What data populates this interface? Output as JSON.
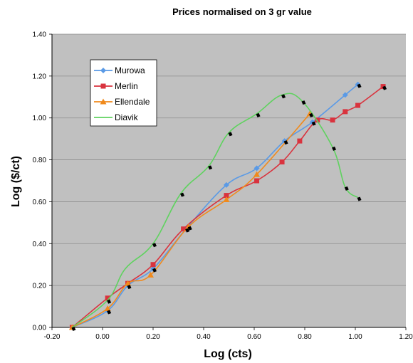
{
  "chart_data": {
    "type": "line",
    "title": "Prices normalised on 3 gr value",
    "xlabel": "Log (cts)",
    "ylabel": "Log ($/ct)",
    "xlim": [
      -0.2,
      1.2
    ],
    "ylim": [
      0.0,
      1.4
    ],
    "x_ticks": [
      "-0.20",
      "0.00",
      "0.20",
      "0.40",
      "0.60",
      "0.80",
      "1.00",
      "1.20"
    ],
    "y_ticks": [
      "0.00",
      "0.20",
      "0.40",
      "0.60",
      "0.80",
      "1.00",
      "1.20",
      "1.40"
    ],
    "grid": "horizontal",
    "legend_position": "top-left",
    "plot_background": "#c0c0c0",
    "series": [
      {
        "name": "Murowa",
        "color": "#5a9ae6",
        "marker": "diamond",
        "x": [
          -0.12,
          0.02,
          0.1,
          0.2,
          0.33,
          0.49,
          0.61,
          0.72,
          0.83,
          0.96,
          1.01
        ],
        "y": [
          0.0,
          0.08,
          0.2,
          0.28,
          0.47,
          0.68,
          0.76,
          0.89,
          0.98,
          1.11,
          1.16
        ]
      },
      {
        "name": "Merlin",
        "color": "#d9333e",
        "marker": "square",
        "x": [
          -0.12,
          0.02,
          0.1,
          0.2,
          0.32,
          0.49,
          0.61,
          0.71,
          0.78,
          0.85,
          0.91,
          0.96,
          1.01,
          1.11
        ],
        "y": [
          0.0,
          0.14,
          0.21,
          0.3,
          0.47,
          0.63,
          0.7,
          0.79,
          0.89,
          0.99,
          0.99,
          1.03,
          1.06,
          1.15
        ]
      },
      {
        "name": "Ellendale",
        "color": "#f08a1c",
        "marker": "triangle",
        "x": [
          -0.12,
          0.02,
          0.1,
          0.19,
          0.34,
          0.49,
          0.61,
          0.82
        ],
        "y": [
          0.0,
          0.09,
          0.21,
          0.25,
          0.48,
          0.61,
          0.73,
          1.02
        ]
      },
      {
        "name": "Diavik",
        "color": "#5fd25f",
        "marker": "none",
        "x": [
          -0.12,
          0.02,
          0.09,
          0.2,
          0.31,
          0.42,
          0.5,
          0.61,
          0.71,
          0.79,
          0.91,
          0.96,
          1.01
        ],
        "y": [
          0.0,
          0.13,
          0.28,
          0.4,
          0.64,
          0.77,
          0.93,
          1.02,
          1.11,
          1.08,
          0.86,
          0.67,
          0.62
        ]
      }
    ],
    "point_markers": {
      "color": "#000000",
      "x": [
        -0.12,
        0.02,
        0.02,
        0.1,
        0.2,
        0.2,
        0.31,
        0.33,
        0.34,
        0.42,
        0.5,
        0.61,
        0.71,
        0.72,
        0.79,
        0.82,
        0.83,
        0.91,
        0.96,
        1.01,
        1.01,
        1.11
      ],
      "y": [
        0.0,
        0.08,
        0.13,
        0.2,
        0.28,
        0.4,
        0.64,
        0.47,
        0.48,
        0.77,
        0.93,
        1.02,
        1.11,
        0.89,
        1.08,
        1.02,
        0.98,
        0.86,
        0.67,
        0.62,
        1.16,
        1.15
      ]
    }
  }
}
